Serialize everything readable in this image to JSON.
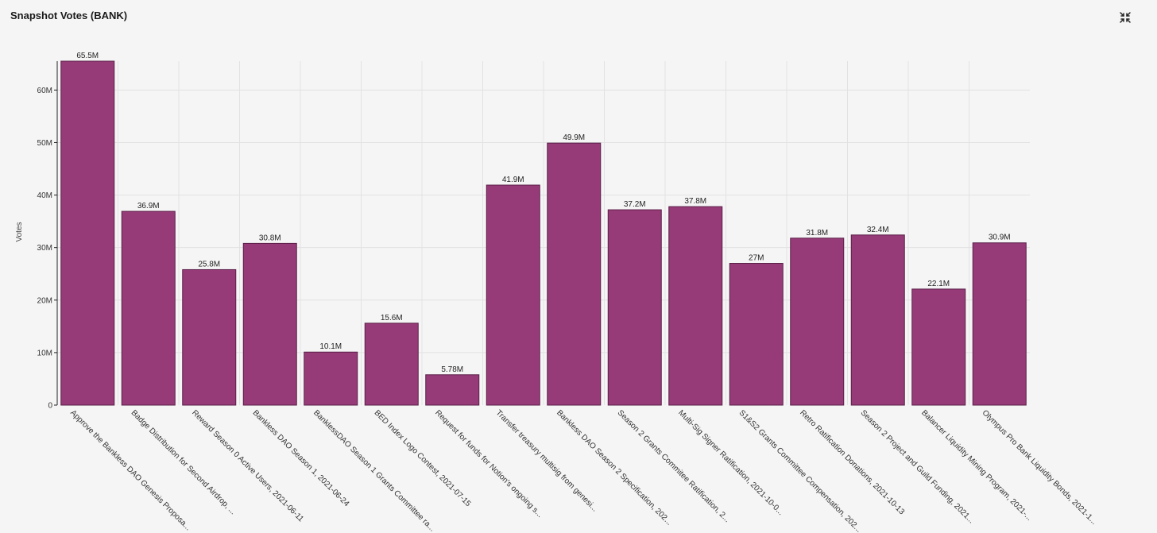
{
  "header": {
    "title": "Snapshot Votes (BANK)",
    "collapse_icon": "collapse-arrows-icon"
  },
  "colors": {
    "bar": "#973b78",
    "bar_stroke": "#5a1e48",
    "grid": "#e2e2e2",
    "axis": "#222222",
    "background": "#f5f5f5"
  },
  "chart_data": {
    "type": "bar",
    "title": "",
    "xlabel": "",
    "ylabel": "Votes",
    "ylim": [
      0,
      65500000
    ],
    "grid": true,
    "yticks": [
      {
        "value": 0,
        "label": "0"
      },
      {
        "value": 10000000,
        "label": "10M"
      },
      {
        "value": 20000000,
        "label": "20M"
      },
      {
        "value": 30000000,
        "label": "30M"
      },
      {
        "value": 40000000,
        "label": "40M"
      },
      {
        "value": 50000000,
        "label": "50M"
      },
      {
        "value": 60000000,
        "label": "60M"
      }
    ],
    "categories": [
      "Approve the Bankless DAO Genesis Proposa...",
      "Badge Distribution for Second Airdrop, ...",
      "Reward Season 0 Active Users, 2021-06-11",
      "Bankless DAO Season 1, 2021-06-24",
      "BanklessDAO Season 1 Grants Committee ra...",
      "BED Index Logo Contest, 2021-07-15",
      "Request for funds for Notion's ongoing s...",
      "Transfer treasury multisig from genesi...",
      "Bankless DAO Season 2 Specification, 202...",
      "Season 2 Grants Commitee Ratification, 2...",
      "Multi-Sig Signer Ratification, 2021-10-0...",
      "S1&S2 Grants Committee Compensation, 202...",
      "Retro Ratification Donations, 2021-10-13",
      "Season 2 Project and Guild Funding, 2021...",
      "Balancer Liquidity Mining Program, 2021-...",
      "Olympus Pro Bank Liquidity Bonds, 2021-1..."
    ],
    "values": [
      65500000,
      36900000,
      25800000,
      30800000,
      10100000,
      15600000,
      5780000,
      41900000,
      49900000,
      37200000,
      37800000,
      27000000,
      31800000,
      32400000,
      22100000,
      30900000
    ],
    "data_labels": [
      "65.5M",
      "36.9M",
      "25.8M",
      "30.8M",
      "10.1M",
      "15.6M",
      "5.78M",
      "41.9M",
      "49.9M",
      "37.2M",
      "37.8M",
      "27M",
      "31.8M",
      "32.4M",
      "22.1M",
      "30.9M"
    ]
  }
}
